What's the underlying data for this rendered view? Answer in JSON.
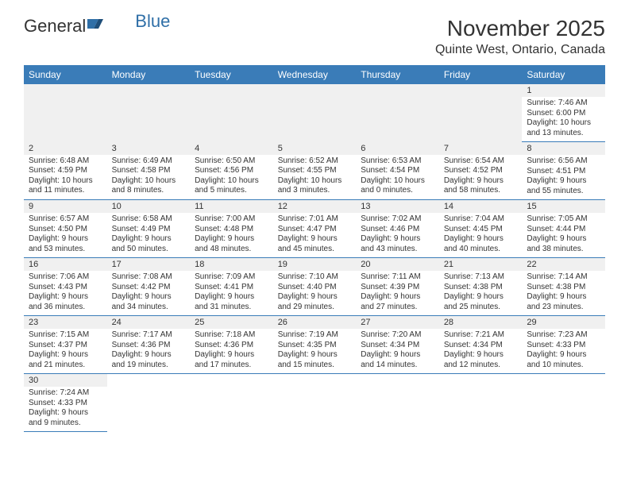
{
  "logo": {
    "part1": "General",
    "part2": "Blue"
  },
  "title": "November 2025",
  "location": "Quinte West, Ontario, Canada",
  "headers": [
    "Sunday",
    "Monday",
    "Tuesday",
    "Wednesday",
    "Thursday",
    "Friday",
    "Saturday"
  ],
  "colors": {
    "header_bg": "#3a7cb8",
    "header_text": "#ffffff",
    "daynum_bg": "#f0f0f0",
    "border": "#3a7cb8",
    "text": "#333333",
    "logo_blue": "#2f6fa7"
  },
  "weeks": [
    [
      null,
      null,
      null,
      null,
      null,
      null,
      {
        "n": "1",
        "sr": "Sunrise: 7:46 AM",
        "ss": "Sunset: 6:00 PM",
        "dl": "Daylight: 10 hours and 13 minutes."
      }
    ],
    [
      {
        "n": "2",
        "sr": "Sunrise: 6:48 AM",
        "ss": "Sunset: 4:59 PM",
        "dl": "Daylight: 10 hours and 11 minutes."
      },
      {
        "n": "3",
        "sr": "Sunrise: 6:49 AM",
        "ss": "Sunset: 4:58 PM",
        "dl": "Daylight: 10 hours and 8 minutes."
      },
      {
        "n": "4",
        "sr": "Sunrise: 6:50 AM",
        "ss": "Sunset: 4:56 PM",
        "dl": "Daylight: 10 hours and 5 minutes."
      },
      {
        "n": "5",
        "sr": "Sunrise: 6:52 AM",
        "ss": "Sunset: 4:55 PM",
        "dl": "Daylight: 10 hours and 3 minutes."
      },
      {
        "n": "6",
        "sr": "Sunrise: 6:53 AM",
        "ss": "Sunset: 4:54 PM",
        "dl": "Daylight: 10 hours and 0 minutes."
      },
      {
        "n": "7",
        "sr": "Sunrise: 6:54 AM",
        "ss": "Sunset: 4:52 PM",
        "dl": "Daylight: 9 hours and 58 minutes."
      },
      {
        "n": "8",
        "sr": "Sunrise: 6:56 AM",
        "ss": "Sunset: 4:51 PM",
        "dl": "Daylight: 9 hours and 55 minutes."
      }
    ],
    [
      {
        "n": "9",
        "sr": "Sunrise: 6:57 AM",
        "ss": "Sunset: 4:50 PM",
        "dl": "Daylight: 9 hours and 53 minutes."
      },
      {
        "n": "10",
        "sr": "Sunrise: 6:58 AM",
        "ss": "Sunset: 4:49 PM",
        "dl": "Daylight: 9 hours and 50 minutes."
      },
      {
        "n": "11",
        "sr": "Sunrise: 7:00 AM",
        "ss": "Sunset: 4:48 PM",
        "dl": "Daylight: 9 hours and 48 minutes."
      },
      {
        "n": "12",
        "sr": "Sunrise: 7:01 AM",
        "ss": "Sunset: 4:47 PM",
        "dl": "Daylight: 9 hours and 45 minutes."
      },
      {
        "n": "13",
        "sr": "Sunrise: 7:02 AM",
        "ss": "Sunset: 4:46 PM",
        "dl": "Daylight: 9 hours and 43 minutes."
      },
      {
        "n": "14",
        "sr": "Sunrise: 7:04 AM",
        "ss": "Sunset: 4:45 PM",
        "dl": "Daylight: 9 hours and 40 minutes."
      },
      {
        "n": "15",
        "sr": "Sunrise: 7:05 AM",
        "ss": "Sunset: 4:44 PM",
        "dl": "Daylight: 9 hours and 38 minutes."
      }
    ],
    [
      {
        "n": "16",
        "sr": "Sunrise: 7:06 AM",
        "ss": "Sunset: 4:43 PM",
        "dl": "Daylight: 9 hours and 36 minutes."
      },
      {
        "n": "17",
        "sr": "Sunrise: 7:08 AM",
        "ss": "Sunset: 4:42 PM",
        "dl": "Daylight: 9 hours and 34 minutes."
      },
      {
        "n": "18",
        "sr": "Sunrise: 7:09 AM",
        "ss": "Sunset: 4:41 PM",
        "dl": "Daylight: 9 hours and 31 minutes."
      },
      {
        "n": "19",
        "sr": "Sunrise: 7:10 AM",
        "ss": "Sunset: 4:40 PM",
        "dl": "Daylight: 9 hours and 29 minutes."
      },
      {
        "n": "20",
        "sr": "Sunrise: 7:11 AM",
        "ss": "Sunset: 4:39 PM",
        "dl": "Daylight: 9 hours and 27 minutes."
      },
      {
        "n": "21",
        "sr": "Sunrise: 7:13 AM",
        "ss": "Sunset: 4:38 PM",
        "dl": "Daylight: 9 hours and 25 minutes."
      },
      {
        "n": "22",
        "sr": "Sunrise: 7:14 AM",
        "ss": "Sunset: 4:38 PM",
        "dl": "Daylight: 9 hours and 23 minutes."
      }
    ],
    [
      {
        "n": "23",
        "sr": "Sunrise: 7:15 AM",
        "ss": "Sunset: 4:37 PM",
        "dl": "Daylight: 9 hours and 21 minutes."
      },
      {
        "n": "24",
        "sr": "Sunrise: 7:17 AM",
        "ss": "Sunset: 4:36 PM",
        "dl": "Daylight: 9 hours and 19 minutes."
      },
      {
        "n": "25",
        "sr": "Sunrise: 7:18 AM",
        "ss": "Sunset: 4:36 PM",
        "dl": "Daylight: 9 hours and 17 minutes."
      },
      {
        "n": "26",
        "sr": "Sunrise: 7:19 AM",
        "ss": "Sunset: 4:35 PM",
        "dl": "Daylight: 9 hours and 15 minutes."
      },
      {
        "n": "27",
        "sr": "Sunrise: 7:20 AM",
        "ss": "Sunset: 4:34 PM",
        "dl": "Daylight: 9 hours and 14 minutes."
      },
      {
        "n": "28",
        "sr": "Sunrise: 7:21 AM",
        "ss": "Sunset: 4:34 PM",
        "dl": "Daylight: 9 hours and 12 minutes."
      },
      {
        "n": "29",
        "sr": "Sunrise: 7:23 AM",
        "ss": "Sunset: 4:33 PM",
        "dl": "Daylight: 9 hours and 10 minutes."
      }
    ],
    [
      {
        "n": "30",
        "sr": "Sunrise: 7:24 AM",
        "ss": "Sunset: 4:33 PM",
        "dl": "Daylight: 9 hours and 9 minutes."
      },
      null,
      null,
      null,
      null,
      null,
      null
    ]
  ]
}
